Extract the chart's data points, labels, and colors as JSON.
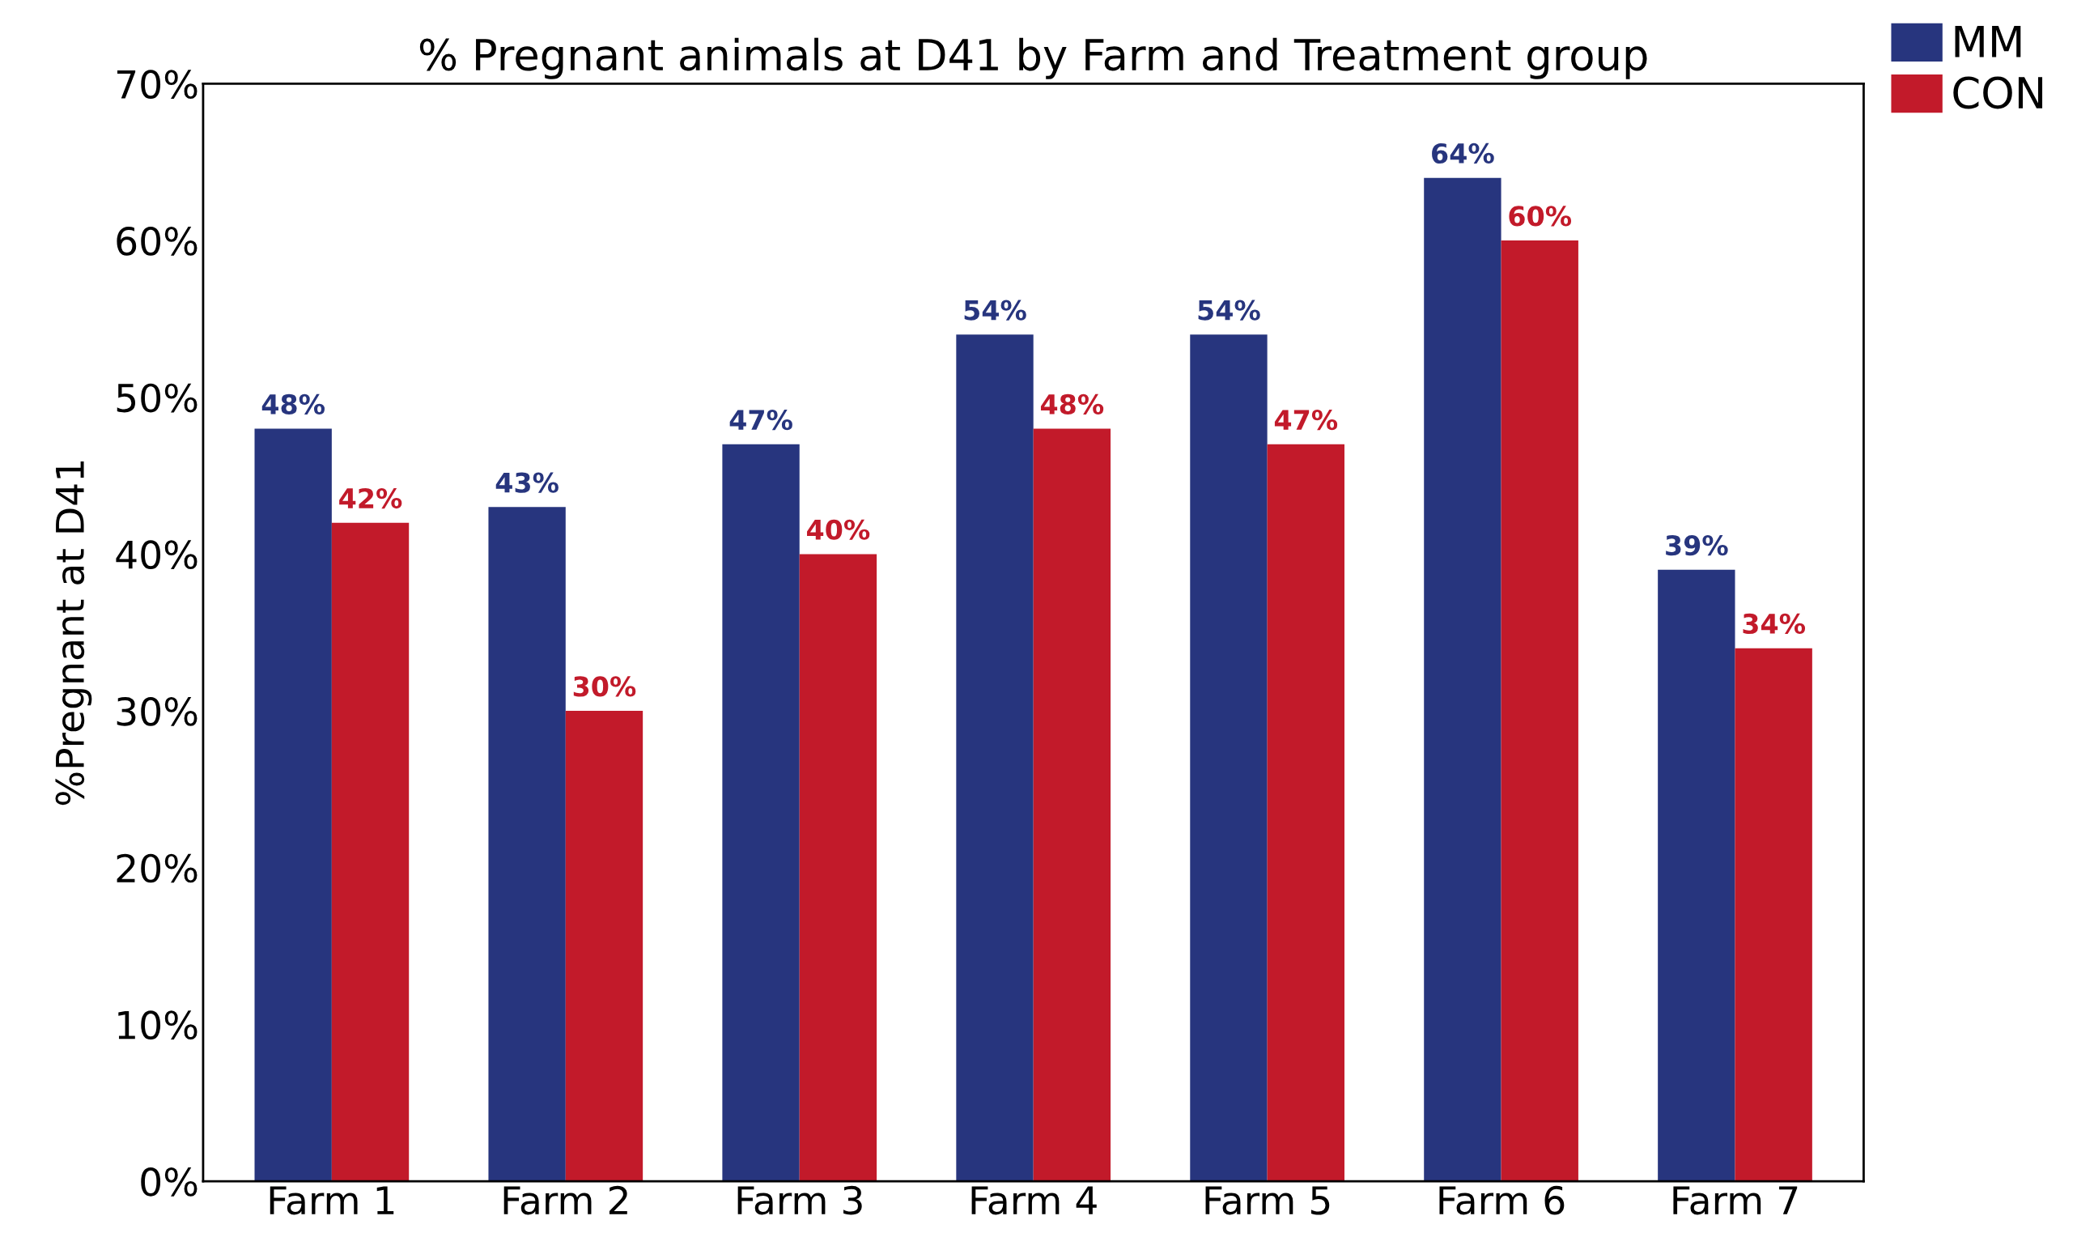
{
  "chart_data": {
    "type": "bar",
    "title": "% Pregnant animals at D41 by Farm and Treatment group",
    "ylabel": "%Pregnant at D41",
    "categories": [
      "Farm 1",
      "Farm 2",
      "Farm 3",
      "Farm 4",
      "Farm 5",
      "Farm 6",
      "Farm 7"
    ],
    "series": [
      {
        "name": "MM",
        "color": "#27357e",
        "values": [
          48,
          43,
          47,
          54,
          54,
          64,
          39
        ],
        "value_labels": [
          "48%",
          "43%",
          "47%",
          "54%",
          "54%",
          "64%",
          "39%"
        ]
      },
      {
        "name": "CON",
        "color": "#c21a2a",
        "values": [
          42,
          30,
          40,
          48,
          47,
          60,
          34
        ],
        "value_labels": [
          "42%",
          "30%",
          "40%",
          "48%",
          "47%",
          "60%",
          "34%"
        ]
      }
    ],
    "ylim": [
      0,
      70
    ],
    "yticks": [
      {
        "value": 0,
        "label": "0%"
      },
      {
        "value": 10,
        "label": "10%"
      },
      {
        "value": 20,
        "label": "20%"
      },
      {
        "value": 30,
        "label": "30%"
      },
      {
        "value": 40,
        "label": "40%"
      },
      {
        "value": 50,
        "label": "50%"
      },
      {
        "value": 60,
        "label": "60%"
      },
      {
        "value": 70,
        "label": "70%"
      }
    ],
    "grid": false,
    "legend": "top right"
  }
}
